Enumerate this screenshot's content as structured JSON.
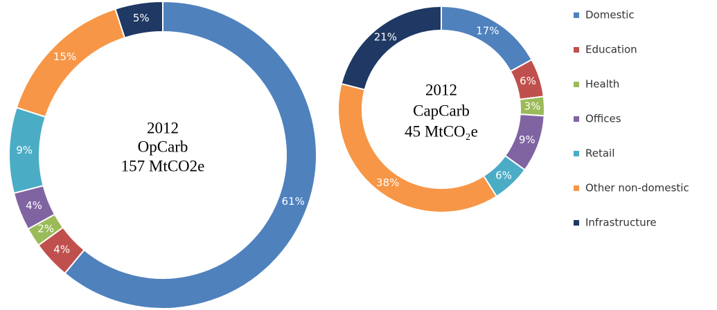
{
  "legend": {
    "labels": [
      "Domestic",
      "Education",
      "Health",
      "Offices",
      "Retail",
      "Other non-domestic",
      "Infrastructure"
    ],
    "colors": [
      "#4f81bd",
      "#c0504d",
      "#9bbb59",
      "#8064a2",
      "#4bacc6",
      "#f79646",
      "#1f3864"
    ]
  },
  "chart_data": [
    {
      "type": "pie",
      "center_text": [
        "2012",
        "OpCarb",
        "157 MtCO2e"
      ],
      "values": [
        61,
        4,
        2,
        4,
        9,
        15,
        5
      ],
      "value_labels": [
        "61%",
        "4%",
        "2%",
        "4%",
        "9%",
        "15%",
        "5%"
      ]
    },
    {
      "type": "pie",
      "center_text": [
        "2012",
        "CapCarb",
        "45 MtCO₂e"
      ],
      "values": [
        17,
        6,
        3,
        9,
        6,
        38,
        21
      ],
      "value_labels": [
        "17%",
        "6%",
        "3%",
        "9%",
        "6%",
        "38%",
        "21%"
      ]
    }
  ]
}
